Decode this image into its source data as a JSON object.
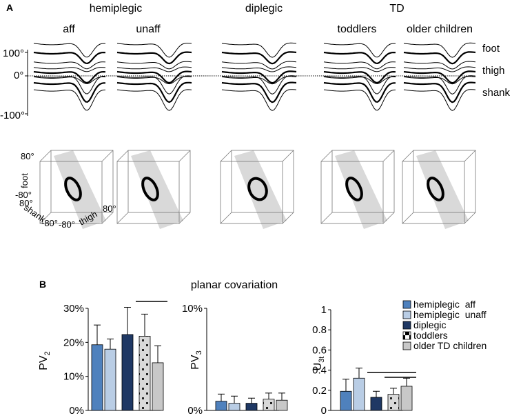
{
  "panel_a": {
    "label": "A",
    "group_titles": [
      "hemiplegic",
      "diplegic",
      "TD"
    ],
    "subgroup_titles": [
      "aff",
      "unaff",
      "toddlers",
      "older children"
    ],
    "segment_labels": [
      "foot",
      "thigh",
      "shank"
    ],
    "y_ticks": [
      "100°",
      "0°",
      "-100°"
    ],
    "cube_axis_labels": {
      "foot_max": "80°",
      "foot_label": "foot",
      "foot_min": "-80°",
      "shank_max": "80°",
      "shank_label": "shank",
      "shank_min": "-80°",
      "thigh_min": "-80°",
      "thigh_label": "thigh",
      "thigh_max": "80°"
    }
  },
  "panel_b": {
    "label": "B",
    "title": "planar covariation",
    "legend": [
      {
        "label": "hemiplegic  aff",
        "color": "#4f81bd",
        "pattern": "solid"
      },
      {
        "label": "hemiplegic  unaff",
        "color": "#b9cde5",
        "pattern": "solid"
      },
      {
        "label": "diplegic",
        "color": "#1f3864",
        "pattern": "solid"
      },
      {
        "label": "toddlers",
        "color": "#d9d9d9",
        "pattern": "dots"
      },
      {
        "label": "older TD children",
        "color": "#c8c8c8",
        "pattern": "solid"
      }
    ]
  },
  "chart_data": [
    {
      "type": "bar",
      "ylabel": "PV2",
      "ylabel_main": "PV",
      "ylabel_sub": "2",
      "ylim": [
        0,
        30
      ],
      "y_ticks": [
        "0%",
        "10%",
        "20%",
        "30%"
      ],
      "categories": [
        "hemiplegic aff",
        "hemiplegic unaff",
        "diplegic",
        "toddlers",
        "older TD children"
      ],
      "values": [
        19.3,
        18.0,
        22.3,
        21.8,
        14.0
      ],
      "errors": [
        5.8,
        3.0,
        8.0,
        6.5,
        5.0
      ],
      "significance": [
        [
          3,
          4
        ]
      ]
    },
    {
      "type": "bar",
      "ylabel": "PV3",
      "ylabel_main": "PV",
      "ylabel_sub": "3",
      "ylim": [
        0,
        10
      ],
      "y_ticks": [
        "0%",
        "10%"
      ],
      "categories": [
        "hemiplegic aff",
        "hemiplegic unaff",
        "diplegic",
        "toddlers",
        "older TD children"
      ],
      "values": [
        0.9,
        0.7,
        0.7,
        1.1,
        1.0
      ],
      "errors": [
        0.7,
        0.7,
        0.5,
        0.6,
        0.7
      ],
      "significance": []
    },
    {
      "type": "bar",
      "ylabel": "U3t",
      "ylabel_main": "U",
      "ylabel_sub": "3t",
      "ylim": [
        0,
        1
      ],
      "y_ticks": [
        "0",
        "0.2",
        "0.4",
        "0.6",
        "0.8",
        "1"
      ],
      "categories": [
        "hemiplegic aff",
        "hemiplegic unaff",
        "diplegic",
        "toddlers",
        "older TD children"
      ],
      "values": [
        0.19,
        0.32,
        0.13,
        0.16,
        0.24
      ],
      "errors": [
        0.12,
        0.1,
        0.06,
        0.06,
        0.08
      ],
      "significance": [
        [
          2,
          4
        ],
        [
          3,
          4
        ]
      ]
    }
  ]
}
